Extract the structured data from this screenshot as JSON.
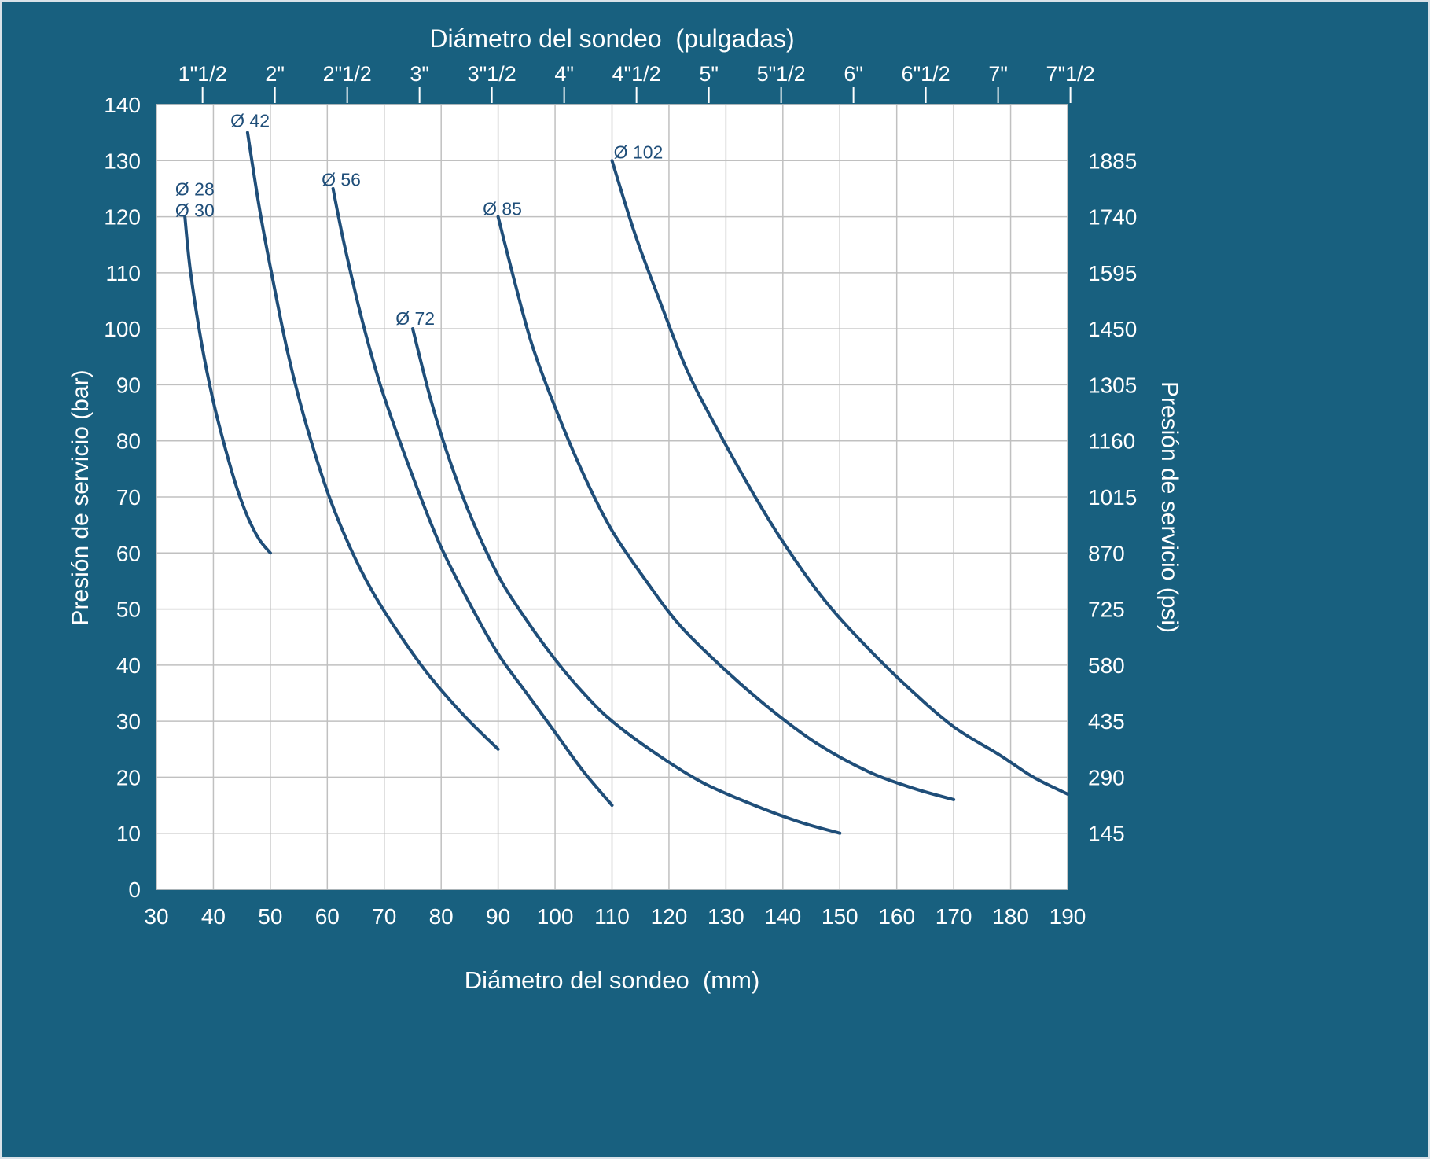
{
  "colors": {
    "background": "#18607F",
    "plot_background": "#ffffff",
    "grid": "#c0c0c0",
    "curve": "#1f4e79",
    "axis_text": "#ffffff",
    "curve_label_text": "#1f4e79"
  },
  "chart_data": {
    "type": "line",
    "top_axis_title": "Diámetro del sondeo  (pulgadas)",
    "bottom_axis_title": "Diámetro del sondeo  (mm)",
    "left_axis_title": "Presión de servicio (bar)",
    "right_axis_title": "Presión de servicio (psi)",
    "grid": true,
    "legend": "none",
    "x_axis": {
      "unit": "mm",
      "min": 30,
      "max": 190,
      "ticks": [
        30,
        40,
        50,
        60,
        70,
        80,
        90,
        100,
        110,
        120,
        130,
        140,
        150,
        160,
        170,
        180,
        190
      ]
    },
    "y_axis_left": {
      "unit": "bar",
      "min": 0,
      "max": 140,
      "ticks": [
        0,
        10,
        20,
        30,
        40,
        50,
        60,
        70,
        80,
        90,
        100,
        110,
        120,
        130,
        140
      ]
    },
    "y_axis_right": {
      "unit": "psi",
      "ticks": [
        {
          "bar": 10,
          "label": "145"
        },
        {
          "bar": 20,
          "label": "290"
        },
        {
          "bar": 30,
          "label": "435"
        },
        {
          "bar": 40,
          "label": "580"
        },
        {
          "bar": 50,
          "label": "725"
        },
        {
          "bar": 60,
          "label": "870"
        },
        {
          "bar": 70,
          "label": "1015"
        },
        {
          "bar": 80,
          "label": "1160"
        },
        {
          "bar": 90,
          "label": "1305"
        },
        {
          "bar": 100,
          "label": "1450"
        },
        {
          "bar": 110,
          "label": "1595"
        },
        {
          "bar": 120,
          "label": "1740"
        },
        {
          "bar": 130,
          "label": "1885"
        }
      ]
    },
    "x_axis_top": {
      "unit": "pulgadas",
      "ticks": [
        {
          "label": "1\"1/2",
          "mm": 38.1
        },
        {
          "label": "2\"",
          "mm": 50.8
        },
        {
          "label": "2\"1/2",
          "mm": 63.5
        },
        {
          "label": "3\"",
          "mm": 76.2
        },
        {
          "label": "3\"1/2",
          "mm": 88.9
        },
        {
          "label": "4\"",
          "mm": 101.6
        },
        {
          "label": "4\"1/2",
          "mm": 114.3
        },
        {
          "label": "5\"",
          "mm": 127
        },
        {
          "label": "5\"1/2",
          "mm": 139.7
        },
        {
          "label": "6\"",
          "mm": 152.4
        },
        {
          "label": "6\"1/2",
          "mm": 165.1
        },
        {
          "label": "7\"",
          "mm": 177.8
        },
        {
          "label": "7\"1/2",
          "mm": 190.5
        }
      ]
    },
    "series": [
      {
        "name": "Ø 28 / Ø 30",
        "label_lines": [
          "Ø 28",
          "Ø 30"
        ],
        "label_at": [
          33.3,
          123.8
        ],
        "points": [
          [
            35,
            120
          ],
          [
            36,
            110
          ],
          [
            38,
            97
          ],
          [
            40,
            87
          ],
          [
            42,
            79
          ],
          [
            44,
            72
          ],
          [
            46,
            66.5
          ],
          [
            48,
            62.5
          ],
          [
            50,
            60
          ]
        ]
      },
      {
        "name": "Ø 42",
        "label_lines": [
          "Ø 42"
        ],
        "label_at": [
          43,
          136
        ],
        "points": [
          [
            46,
            135
          ],
          [
            48,
            122
          ],
          [
            50,
            111
          ],
          [
            53,
            96
          ],
          [
            56,
            84
          ],
          [
            60,
            71
          ],
          [
            64,
            61
          ],
          [
            68,
            53
          ],
          [
            73,
            45
          ],
          [
            78,
            38
          ],
          [
            84,
            31
          ],
          [
            90,
            25
          ]
        ]
      },
      {
        "name": "Ø 56",
        "label_lines": [
          "Ø 56"
        ],
        "label_at": [
          59,
          125.5
        ],
        "points": [
          [
            61,
            125
          ],
          [
            63,
            115
          ],
          [
            66,
            102
          ],
          [
            69,
            91
          ],
          [
            72,
            82
          ],
          [
            76,
            71
          ],
          [
            80,
            61
          ],
          [
            85,
            51
          ],
          [
            90,
            42
          ],
          [
            95,
            35
          ],
          [
            100,
            28
          ],
          [
            105,
            21
          ],
          [
            110,
            15
          ]
        ]
      },
      {
        "name": "Ø 72",
        "label_lines": [
          "Ø 72"
        ],
        "label_at": [
          72,
          100.7
        ],
        "points": [
          [
            75,
            100
          ],
          [
            78,
            88
          ],
          [
            81,
            78
          ],
          [
            85,
            67
          ],
          [
            90,
            56
          ],
          [
            95,
            48
          ],
          [
            100,
            41
          ],
          [
            105,
            35
          ],
          [
            110,
            30
          ],
          [
            118,
            24
          ],
          [
            126,
            19
          ],
          [
            135,
            15
          ],
          [
            143,
            12
          ],
          [
            150,
            10
          ]
        ]
      },
      {
        "name": "Ø 85",
        "label_lines": [
          "Ø 85"
        ],
        "label_at": [
          87.3,
          120.3
        ],
        "points": [
          [
            90,
            120
          ],
          [
            93,
            108
          ],
          [
            96,
            97
          ],
          [
            100,
            86
          ],
          [
            105,
            74
          ],
          [
            110,
            64
          ],
          [
            116,
            55
          ],
          [
            122,
            47
          ],
          [
            130,
            39
          ],
          [
            138,
            32
          ],
          [
            146,
            26
          ],
          [
            155,
            21
          ],
          [
            163,
            18
          ],
          [
            170,
            16
          ]
        ]
      },
      {
        "name": "Ø 102",
        "label_lines": [
          "Ø 102"
        ],
        "label_at": [
          110.3,
          130.4
        ],
        "points": [
          [
            110,
            130
          ],
          [
            114,
            117
          ],
          [
            118,
            106
          ],
          [
            123,
            93
          ],
          [
            128,
            83
          ],
          [
            134,
            72
          ],
          [
            140,
            62
          ],
          [
            147,
            52
          ],
          [
            154,
            44
          ],
          [
            162,
            36
          ],
          [
            170,
            29
          ],
          [
            178,
            24
          ],
          [
            184,
            20
          ],
          [
            190,
            17
          ]
        ]
      }
    ]
  }
}
